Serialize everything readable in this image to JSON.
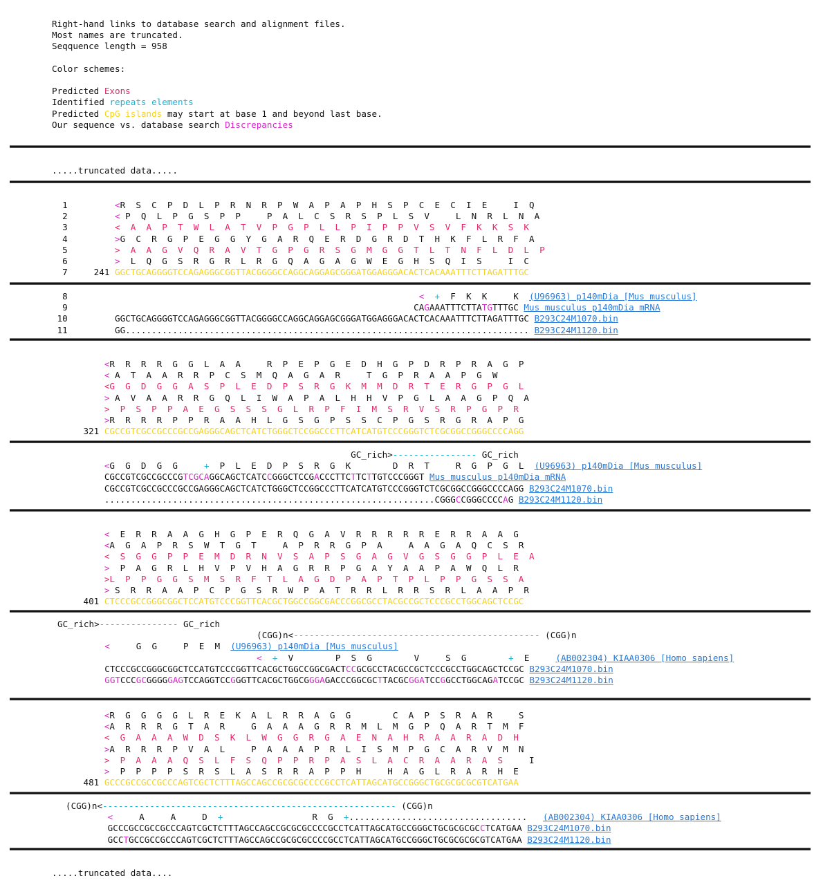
{
  "intro": {
    "l1": "Right-hand links to database search and alignment files.",
    "l2": "Most names are truncated.",
    "l3": "Seqquence length = 958",
    "l4": "Color schemes:",
    "l5a": "Predicted ",
    "l5b": "Exons",
    "l6a": "Identified ",
    "l6b": "repeats elements",
    "l7a": "Predicted ",
    "l7b": "CpG islands",
    "l7c": " may start at base 1 and beyond last base.",
    "l8a": "Our sequence vs. database search ",
    "l8b": "Discrepancies"
  },
  "truncated_top": ".....truncated data.....",
  "truncated_bottom": ".....truncated data....",
  "colors": {
    "exon": "#e8246a",
    "repeat": "#1fb3d2",
    "cpg": "#f7d31a",
    "discrepancy": "#d42ac8",
    "link": "#2a7bd8"
  },
  "links": {
    "u96963_p140": "(U96963) p140mDia [Mus musculus]",
    "mus_mrna": "Mus musculus p140mDia mRNA",
    "b1070": "B293C24M1070.bin",
    "b1120": "B293C24M1120.bin",
    "u96963_short": "(U96963) p140mDia [Mus musculus]",
    "ab002304": "(AB002304) KIAA0306 [Homo sapiens]"
  }
}
